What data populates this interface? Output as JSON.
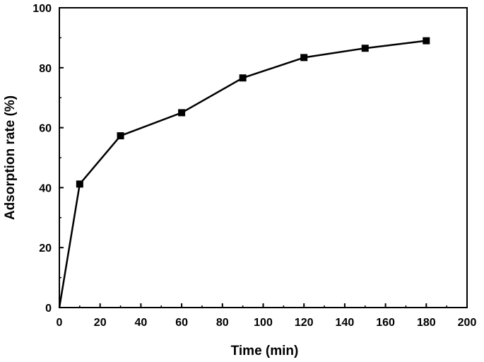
{
  "chart_data": {
    "type": "line",
    "title": "",
    "xlabel": "Time (min)",
    "ylabel": "Adsorption rate (%)",
    "xlim": [
      0,
      200
    ],
    "ylim": [
      0,
      100
    ],
    "x_ticks": [
      0,
      20,
      40,
      60,
      80,
      100,
      120,
      140,
      160,
      180,
      200
    ],
    "y_ticks": [
      0,
      20,
      40,
      60,
      80,
      100
    ],
    "grid": false,
    "legend": "none",
    "series": [
      {
        "x": [
          0,
          10,
          30,
          60,
          90,
          120,
          150,
          180
        ],
        "y": [
          0,
          41.2,
          57.3,
          65.0,
          76.6,
          83.4,
          86.5,
          89.0
        ],
        "marker": "square",
        "color": "#000000"
      }
    ]
  }
}
